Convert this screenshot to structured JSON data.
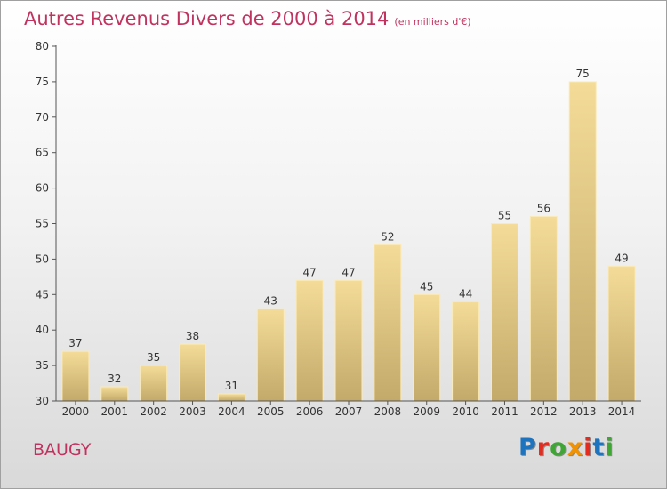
{
  "header": {
    "title": "Autres Revenus Divers de 2000 à 2014",
    "subtitle": "(en milliers d'€)"
  },
  "footer": {
    "commune": "BAUGY",
    "logo_text": "Proxiti",
    "logo_colors": [
      "#1e73be",
      "#e52b1e",
      "#3fa535",
      "#f39200",
      "#e52b1e",
      "#1e73be",
      "#3fa535"
    ]
  },
  "colors": {
    "title": "#c0335f",
    "bar_light": "#f4dc98",
    "bar_dark": "#c3a96a",
    "axis": "#555555"
  },
  "chart_data": {
    "type": "bar",
    "categories": [
      "2000",
      "2001",
      "2002",
      "2003",
      "2004",
      "2005",
      "2006",
      "2007",
      "2008",
      "2009",
      "2010",
      "2011",
      "2012",
      "2013",
      "2014"
    ],
    "values": [
      37,
      32,
      35,
      38,
      31,
      43,
      47,
      47,
      52,
      45,
      44,
      55,
      56,
      75,
      49
    ],
    "ylim": [
      30,
      80
    ],
    "yticks": [
      30,
      35,
      40,
      45,
      50,
      55,
      60,
      65,
      70,
      75,
      80
    ],
    "grid": false,
    "data_labels": true
  }
}
